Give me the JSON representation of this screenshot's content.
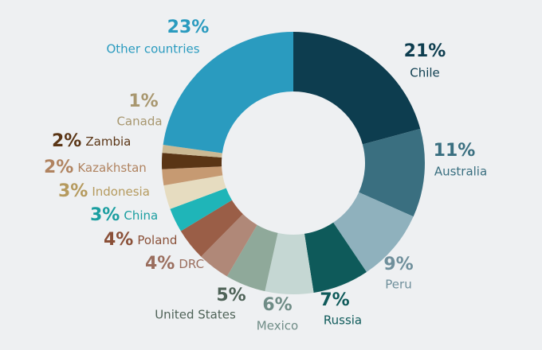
{
  "chart_data": {
    "type": "donut",
    "categories": [
      "Chile",
      "Australia",
      "Peru",
      "Russia",
      "Mexico",
      "United States",
      "DRC",
      "Poland",
      "China",
      "Indonesia",
      "Kazakhstan",
      "Zambia",
      "Canada",
      "Other countries"
    ],
    "values": [
      21,
      11,
      9,
      7,
      6,
      5,
      4,
      4,
      3,
      3,
      2,
      2,
      1,
      23
    ],
    "value_labels": [
      "21%",
      "11%",
      "9%",
      "7%",
      "6%",
      "5%",
      "4%",
      "4%",
      "3%",
      "3%",
      "2%",
      "2%",
      "1%",
      "23%"
    ],
    "colors": [
      "#0d3d4f",
      "#3a6f80",
      "#8fb1bd",
      "#0e5a5a",
      "#c5d7d3",
      "#8fa99a",
      "#b08878",
      "#9a5e47",
      "#1fb5b8",
      "#e6dcc0",
      "#c69a72",
      "#5a3515",
      "#cbb994",
      "#2a9bbf"
    ]
  }
}
